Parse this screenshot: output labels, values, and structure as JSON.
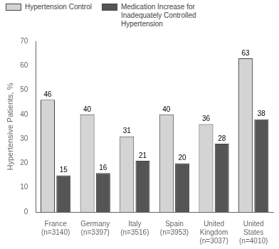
{
  "chart_data": {
    "type": "bar",
    "categories": [
      "France\n(n=3140)",
      "Germany\n(n=3397)",
      "Italy\n(n=3516)",
      "Spain\n(n=3953)",
      "United\nKingdom\n(n=3037)",
      "United\nStates\n(n=4010)"
    ],
    "series": [
      {
        "name": "Hypertension Control",
        "color": "#d4d4d4",
        "values": [
          46,
          40,
          31,
          40,
          36,
          63
        ]
      },
      {
        "name": "Medication Increase for\nInadequately Controlled\nHypertension",
        "color": "#555555",
        "values": [
          15,
          16,
          21,
          20,
          28,
          38
        ]
      }
    ],
    "ylabel": "Hypertensive Patients, %",
    "ylim": [
      0,
      70
    ],
    "yticks": [
      0,
      10,
      20,
      30,
      40,
      50,
      60,
      70
    ],
    "grid": false,
    "legend": "upper left",
    "data_labels": true
  }
}
